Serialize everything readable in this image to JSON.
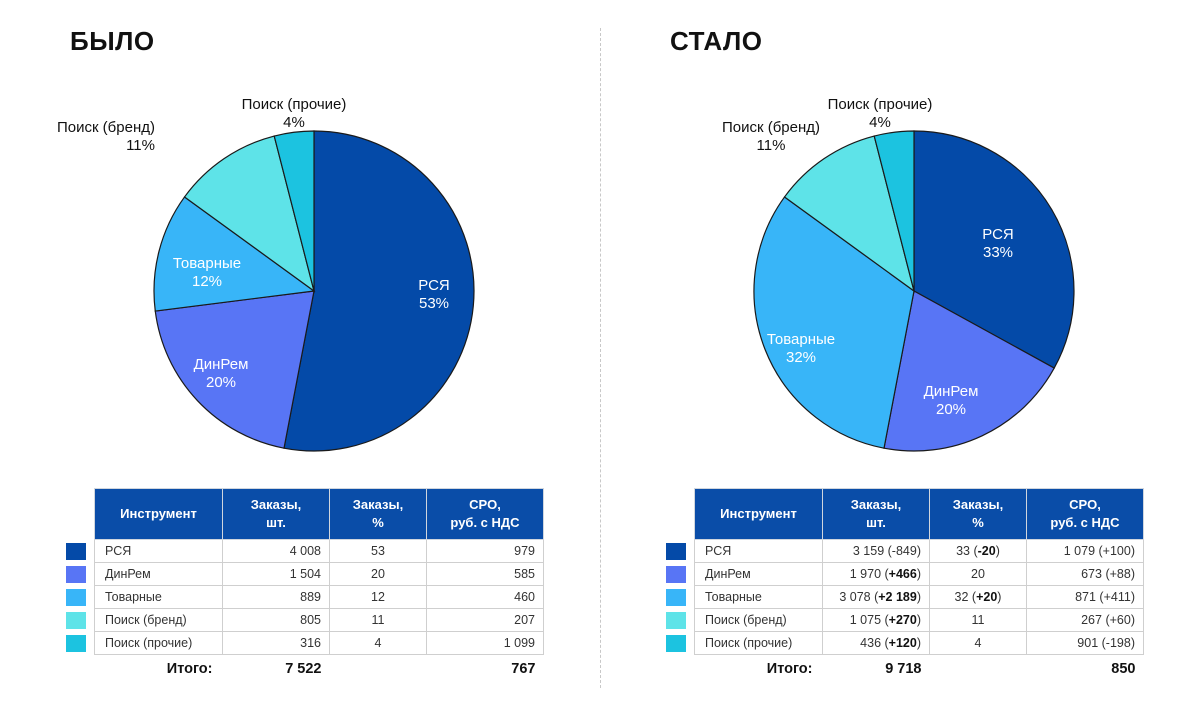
{
  "colors": {
    "РСЯ": "#044aa8",
    "ДинРем": "#5875f5",
    "Товарные": "#38b5f8",
    "Поиск (бренд)": "#5ee3e8",
    "Поиск (прочие)": "#1cc3e0",
    "header": "#0a4da8"
  },
  "table_headers": [
    "Инструмент",
    "Заказы,\nшт.",
    "Заказы,\n%",
    "CPO,\nруб. с НДС"
  ],
  "panels": [
    {
      "title": "БЫЛО",
      "chart_data": {
        "type": "pie",
        "slices": [
          {
            "label": "РСЯ",
            "value": 53,
            "pct": "53%"
          },
          {
            "label": "ДинРем",
            "value": 20,
            "pct": "20%"
          },
          {
            "label": "Товарные",
            "value": 12,
            "pct": "12%"
          },
          {
            "label": "Поиск (бренд)",
            "value": 11,
            "pct": "11%"
          },
          {
            "label": "Поиск (прочие)",
            "value": 4,
            "pct": "4%"
          }
        ]
      },
      "rows": [
        {
          "name": "РСЯ",
          "orders": "4 008",
          "pct": "53",
          "cpo": "979"
        },
        {
          "name": "ДинРем",
          "orders": "1 504",
          "pct": "20",
          "cpo": "585"
        },
        {
          "name": "Товарные",
          "orders": "889",
          "pct": "12",
          "cpo": "460"
        },
        {
          "name": "Поиск (бренд)",
          "orders": "805",
          "pct": "11",
          "cpo": "207"
        },
        {
          "name": "Поиск (прочие)",
          "orders": "316",
          "pct": "4",
          "cpo": "1 099"
        }
      ],
      "total": {
        "label": "Итого:",
        "orders": "7 522",
        "cpo": "767"
      }
    },
    {
      "title": "СТАЛО",
      "chart_data": {
        "type": "pie",
        "slices": [
          {
            "label": "РСЯ",
            "value": 33,
            "pct": "33%"
          },
          {
            "label": "ДинРем",
            "value": 20,
            "pct": "20%"
          },
          {
            "label": "Товарные",
            "value": 32,
            "pct": "32%"
          },
          {
            "label": "Поиск (бренд)",
            "value": 11,
            "pct": "11%"
          },
          {
            "label": "Поиск (прочие)",
            "value": 4,
            "pct": "4%"
          }
        ]
      },
      "rows": [
        {
          "name": "РСЯ",
          "orders": "3 159",
          "orders_delta": "-849",
          "orders_bold": false,
          "pct": "33",
          "pct_delta": "-20",
          "pct_bold": true,
          "cpo": "1 079",
          "cpo_delta": "+100"
        },
        {
          "name": "ДинРем",
          "orders": "1 970",
          "orders_delta": "+466",
          "orders_bold": true,
          "pct": "20",
          "pct_delta": "",
          "pct_bold": false,
          "cpo": "673",
          "cpo_delta": "+88"
        },
        {
          "name": "Товарные",
          "orders": "3 078",
          "orders_delta": "+2 189",
          "orders_bold": true,
          "pct": "32",
          "pct_delta": "+20",
          "pct_bold": true,
          "cpo": "871",
          "cpo_delta": "+411"
        },
        {
          "name": "Поиск (бренд)",
          "orders": "1 075",
          "orders_delta": "+270",
          "orders_bold": true,
          "pct": "11",
          "pct_delta": "",
          "pct_bold": false,
          "cpo": "267",
          "cpo_delta": "+60"
        },
        {
          "name": "Поиск (прочие)",
          "orders": "436",
          "orders_delta": "+120",
          "orders_bold": true,
          "pct": "4",
          "pct_delta": "",
          "pct_bold": false,
          "cpo": "901",
          "cpo_delta": "-198"
        }
      ],
      "total": {
        "label": "Итого:",
        "orders": "9 718",
        "cpo": "850"
      }
    }
  ]
}
